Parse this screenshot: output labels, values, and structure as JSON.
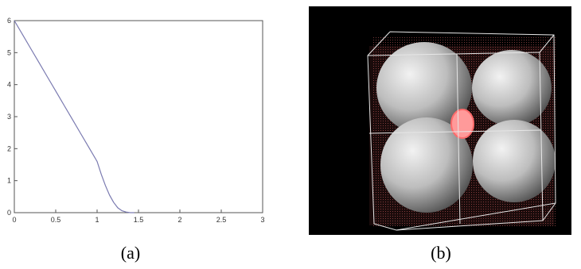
{
  "chart_data": {
    "type": "line",
    "x": [
      0,
      0.1,
      0.2,
      0.3,
      0.4,
      0.5,
      0.6,
      0.7,
      0.8,
      0.9,
      1.0,
      1.05,
      1.1,
      1.15,
      1.2,
      1.25,
      1.3,
      1.35,
      1.4,
      1.45
    ],
    "y": [
      6.0,
      5.56,
      5.12,
      4.68,
      4.24,
      3.8,
      3.36,
      2.92,
      2.48,
      2.04,
      1.6,
      1.2,
      0.85,
      0.55,
      0.32,
      0.15,
      0.06,
      0.02,
      0.0,
      0.0
    ],
    "xlim": [
      0,
      3
    ],
    "ylim": [
      0,
      6
    ],
    "xticks": [
      "0",
      "0.5",
      "1",
      "1.5",
      "2",
      "2.5",
      "3"
    ],
    "yticks": [
      "0",
      "1",
      "2",
      "3",
      "4",
      "5",
      "6"
    ],
    "xtick_values": [
      0,
      0.5,
      1,
      1.5,
      2,
      2.5,
      3
    ],
    "ytick_values": [
      0,
      1,
      2,
      3,
      4,
      5,
      6
    ],
    "line_color": "#7a7ab0",
    "grid": false
  },
  "panel_b": {
    "background": "#000000",
    "sphere_color": "#c8c8c8",
    "shell_color": "#ff6b6b",
    "wire_color": "#e0e0e0"
  },
  "captions": {
    "a": "(a)",
    "b": "(b)"
  }
}
